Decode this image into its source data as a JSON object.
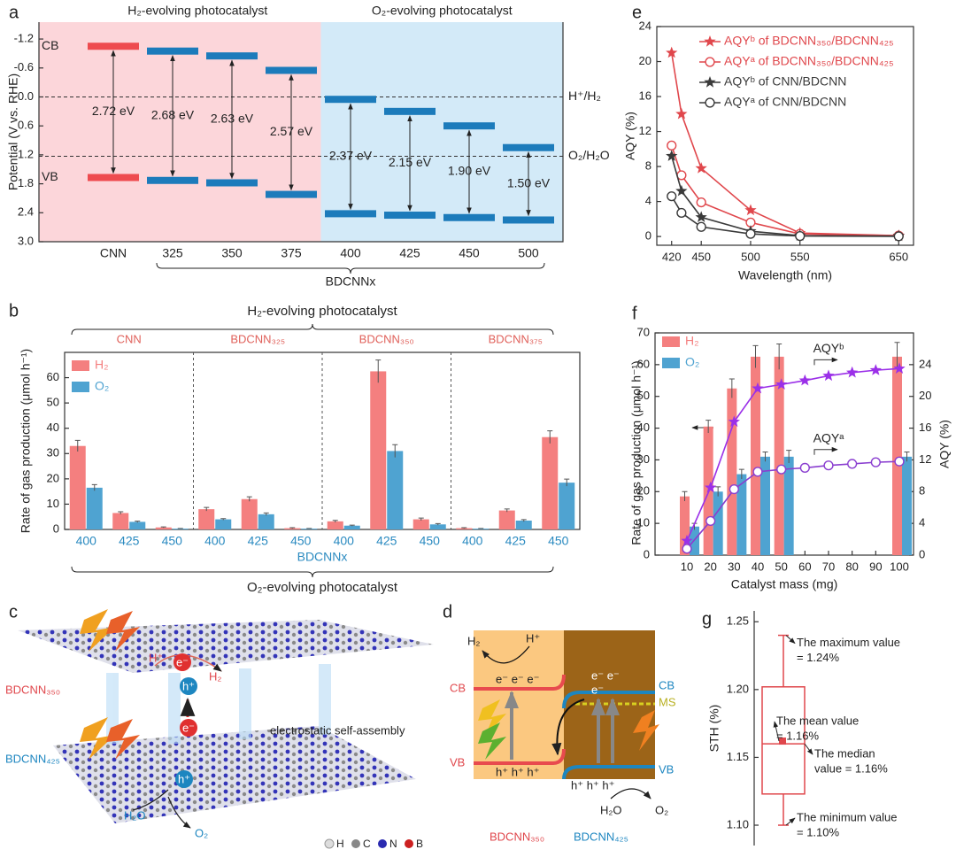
{
  "chart_data": [
    {
      "panel": "a",
      "type": "energy_level",
      "ylabel": "Potential (V vs. RHE)",
      "group_labels": [
        "H₂-evolving photocatalyst",
        "O₂-evolving photocatalyst"
      ],
      "categories": [
        "CNN",
        "325",
        "350",
        "375",
        "400",
        "425",
        "450",
        "500"
      ],
      "xgroup_label": "BDCNNx",
      "series": [
        {
          "name": "CB",
          "values": [
            -1.05,
            -0.95,
            -0.85,
            -0.55,
            0.05,
            0.3,
            0.6,
            1.05
          ]
        },
        {
          "name": "VB",
          "values": [
            1.67,
            1.73,
            1.78,
            2.02,
            2.42,
            2.45,
            2.5,
            2.55
          ]
        }
      ],
      "bandgaps": {
        "values": [
          2.72,
          2.68,
          2.63,
          2.57,
          2.37,
          2.15,
          1.9,
          1.5
        ],
        "value_labels": [
          "2.72 eV",
          "2.68 eV",
          "2.63 eV",
          "2.57 eV",
          "2.37 eV",
          "2.15 eV",
          "1.90 eV",
          "1.50 eV"
        ]
      },
      "bar_colors": [
        "#ee4b4f",
        "#1c7bbb",
        "#1c7bbb",
        "#1c7bbb",
        "#1c7bbb",
        "#1c7bbb",
        "#1c7bbb",
        "#1c7bbb"
      ],
      "reference_lines": [
        {
          "label": "H⁺/H₂",
          "value": 0
        },
        {
          "label": "O₂/H₂O",
          "value": 1.23
        }
      ],
      "background_colors": [
        "#fcd6da",
        "#d3eaf8"
      ],
      "ylim": [
        -1.55,
        3.0
      ],
      "inverted": true,
      "yticks": [
        -1.2,
        -0.6,
        {
          "value": 0,
          "label": "0.0"
        },
        0.6,
        1.2,
        1.8,
        2.4,
        {
          "value": 3,
          "label": "3.0"
        }
      ]
    },
    {
      "panel": "b",
      "type": "grouped_bar",
      "title": "H₂-evolving photocatalyst",
      "bottom_label": "O₂-evolving photocatalyst",
      "groups": [
        "CNN",
        "BDCNN₃₂₅",
        "BDCNN₃₅₀",
        "BDCNN₃₇₅"
      ],
      "categories": [
        "400",
        "425",
        "450",
        "400",
        "425",
        "450",
        "400",
        "425",
        "450",
        "400",
        "425",
        "450"
      ],
      "xlabel": "BDCNNx",
      "ylabel": "Rate of gas production (μmol h⁻¹)",
      "series": [
        {
          "name": "H₂",
          "color": "#f47f7f",
          "values": [
            33,
            6.5,
            0.8,
            8,
            12,
            0.5,
            3.2,
            62.5,
            4,
            0.5,
            7.5,
            36.5
          ],
          "errors": [
            2.2,
            0.5,
            0.2,
            0.7,
            0.9,
            0.2,
            0.4,
            4.5,
            0.5,
            0.2,
            0.6,
            2.5
          ]
        },
        {
          "name": "O₂",
          "color": "#4fa3d1",
          "values": [
            16.5,
            3,
            0.3,
            4,
            6,
            0.3,
            1.5,
            31,
            2,
            0.3,
            3.5,
            18.5
          ],
          "errors": [
            1.2,
            0.3,
            0.1,
            0.3,
            0.5,
            0.1,
            0.2,
            2.5,
            0.3,
            0.1,
            0.4,
            1.4
          ]
        }
      ],
      "ylim": [
        0,
        70
      ],
      "yticks": [
        0,
        10,
        20,
        30,
        40,
        50,
        60
      ],
      "legend": "upper left"
    },
    {
      "panel": "e",
      "type": "line",
      "xlabel": "Wavelength (nm)",
      "ylabel": "AQY (%)",
      "x": [
        420,
        430,
        450,
        500,
        550,
        650
      ],
      "series": [
        {
          "name": "AQYᵇ of BDCNN₃₅₀/BDCNN₄₂₅",
          "color": "#e0474c",
          "marker": "star",
          "values": [
            21,
            14,
            7.8,
            3,
            0.4,
            0.1
          ]
        },
        {
          "name": "AQYᵃ of BDCNN₃₅₀/BDCNN₄₂₅",
          "color": "#e0474c",
          "marker": "circle",
          "values": [
            10.4,
            7,
            3.9,
            1.6,
            0.3,
            0.1
          ]
        },
        {
          "name": "AQYᵇ of CNN/BDCNN",
          "color": "#3a3a3a",
          "marker": "star",
          "values": [
            9.2,
            5.2,
            2.2,
            0.6,
            0.1,
            0.05
          ]
        },
        {
          "name": "AQYᵃ of CNN/BDCNN",
          "color": "#3a3a3a",
          "marker": "circle",
          "values": [
            4.6,
            2.7,
            1.1,
            0.3,
            0.05,
            0.02
          ]
        }
      ],
      "xlim": [
        405,
        665
      ],
      "xticks": [
        420,
        450,
        500,
        550,
        650
      ],
      "ylim": [
        -1,
        24
      ],
      "yticks": [
        0,
        4,
        8,
        12,
        16,
        20,
        24
      ],
      "legend": "upper right"
    },
    {
      "panel": "f",
      "type": "bar_line",
      "xlabel": "Catalyst mass (mg)",
      "ylabel": "Rate of gas production (μmol h⁻¹)",
      "y2label": "AQY (%)",
      "x": [
        10,
        20,
        30,
        40,
        50,
        60,
        70,
        80,
        90,
        100
      ],
      "series": [
        {
          "name": "H₂",
          "type": "bar",
          "color": "#f47f7f",
          "values": [
            18.5,
            40.5,
            52.5,
            62.5,
            62.5,
            null,
            null,
            null,
            null,
            62.5
          ],
          "errors": [
            1.5,
            2,
            3,
            3.5,
            4,
            null,
            null,
            null,
            null,
            4.5
          ]
        },
        {
          "name": "O₂",
          "type": "bar",
          "color": "#4fa3d1",
          "values": [
            9,
            20,
            25.5,
            31,
            31,
            null,
            null,
            null,
            null,
            31
          ],
          "errors": [
            1,
            1.5,
            1.5,
            1.5,
            2,
            null,
            null,
            null,
            null,
            1.5
          ]
        },
        {
          "name": "AQYᵇ",
          "type": "line",
          "axis": "y2",
          "marker": "star",
          "color": "#9b30e8",
          "values": [
            1.8,
            8.5,
            16.8,
            21,
            21.5,
            22,
            22.6,
            23,
            23.3,
            23.5
          ]
        },
        {
          "name": "AQYᵃ",
          "type": "line",
          "axis": "y2",
          "marker": "circle",
          "color": "#8a3ed0",
          "values": [
            0.8,
            4.3,
            8.3,
            10.5,
            10.8,
            11,
            11.3,
            11.5,
            11.7,
            11.8
          ]
        }
      ],
      "xlim": [
        -3.5,
        106
      ],
      "xticks": [
        10,
        20,
        30,
        40,
        50,
        60,
        70,
        80,
        90,
        100
      ],
      "ylim": [
        0,
        70
      ],
      "yticks": [
        0,
        10,
        20,
        30,
        40,
        50,
        60,
        70
      ],
      "y2lim": [
        0,
        28
      ],
      "y2ticks": [
        0,
        4,
        8,
        12,
        16,
        20,
        24
      ],
      "legend": "upper left"
    },
    {
      "panel": "g",
      "type": "box",
      "ylabel": "STH (%)",
      "color": "#e0474c",
      "box": {
        "max": {
          "value": 1.24,
          "label": [
            "The maximum value",
            "= 1.24%"
          ]
        },
        "q3": 1.202,
        "mean": {
          "value": 1.162,
          "label": [
            "The mean value",
            "= 1.16%"
          ]
        },
        "median": {
          "value": 1.16,
          "label": [
            "The median",
            "value = 1.16%"
          ]
        },
        "q1": 1.123,
        "min": {
          "value": 1.1,
          "label": [
            "The minimum value",
            "= 1.10%"
          ]
        }
      },
      "ylim": [
        1.085,
        1.258
      ],
      "yticks": [
        {
          "value": 1.1,
          "label": "1.10"
        },
        {
          "value": 1.15,
          "label": "1.15"
        },
        {
          "value": 1.2,
          "label": "1.20"
        },
        {
          "value": 1.25,
          "label": "1.25"
        }
      ]
    }
  ],
  "diagrams": {
    "c": {
      "panel": "c",
      "texts": [
        "H⁺",
        "e⁻",
        "H₂",
        "h⁺",
        "BDCNN₃₅₀",
        "e⁻",
        "electrostatic self-assembly",
        "BDCNN₄₂₅",
        "h⁺",
        "H₂O",
        "O₂"
      ],
      "atoms": [
        "H",
        "C",
        "N",
        "B"
      ]
    },
    "d": {
      "panel": "d",
      "texts": [
        "H₂",
        "H⁺",
        "CB",
        "e⁻ e⁻ e⁻",
        "e⁻ e⁻",
        "e⁻",
        "CB",
        "MS",
        "VB",
        "VB",
        "h⁺ h⁺ h⁺",
        "h⁺ h⁺ h⁺",
        "H₂O",
        "O₂",
        "BDCNN₃₅₀",
        "BDCNN₄₂₅"
      ]
    }
  }
}
